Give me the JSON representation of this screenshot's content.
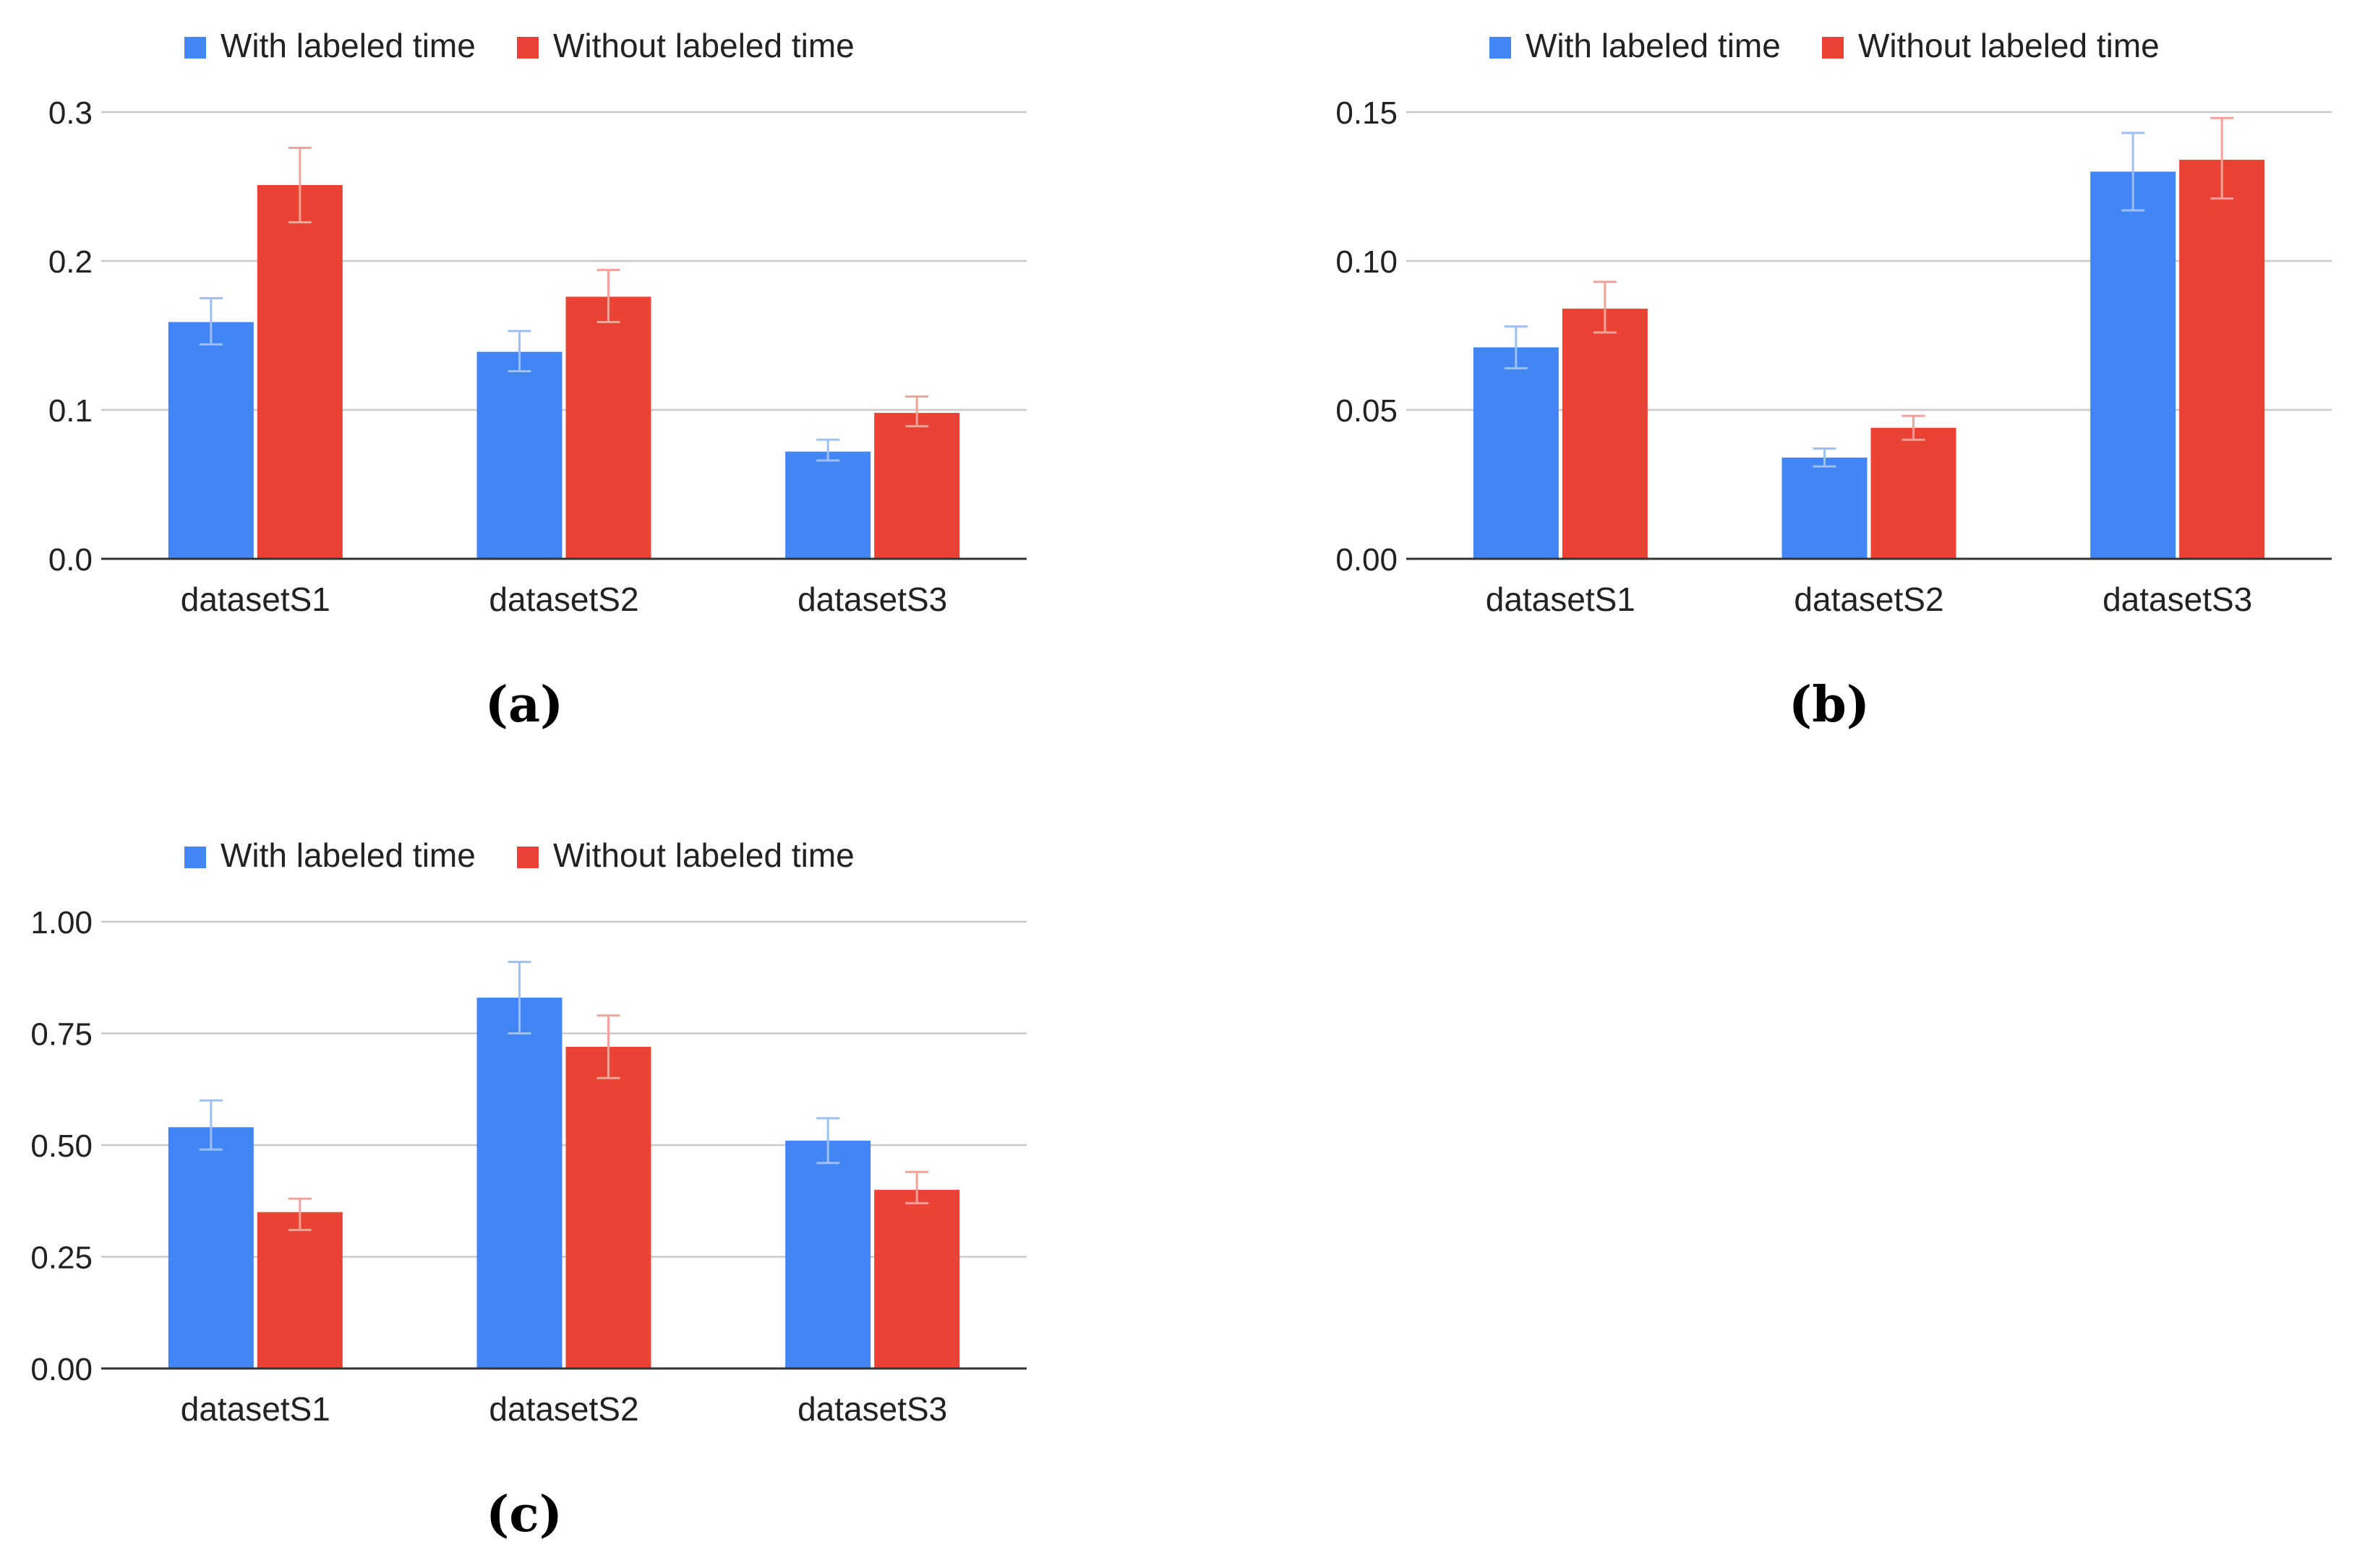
{
  "colors": {
    "with": "#4285F4",
    "without": "#EA4335",
    "with_err": "#9DC0F8",
    "without_err": "#F4A19A",
    "grid": "#C8C8C8",
    "axis": "#333333",
    "text": "#222222"
  },
  "chart_data": [
    {
      "type": "bar",
      "caption": "(a)",
      "categories": [
        "datasetS1",
        "datasetS2",
        "datasetS3"
      ],
      "series": [
        {
          "name": "With labeled time",
          "values": [
            0.159,
            0.139,
            0.072
          ],
          "err_low": [
            0.144,
            0.126,
            0.066
          ],
          "err_high": [
            0.175,
            0.153,
            0.08
          ]
        },
        {
          "name": "Without labeled time",
          "values": [
            0.251,
            0.176,
            0.098
          ],
          "err_low": [
            0.226,
            0.159,
            0.089
          ],
          "err_high": [
            0.276,
            0.194,
            0.109
          ]
        }
      ],
      "ylim": [
        0,
        0.3
      ],
      "yticks": [
        0.0,
        0.1,
        0.2,
        0.3
      ],
      "ytick_labels": [
        "0.0",
        "0.1",
        "0.2",
        "0.3"
      ],
      "legend_position": "top",
      "grid": true
    },
    {
      "type": "bar",
      "caption": "(b)",
      "categories": [
        "datasetS1",
        "datasetS2",
        "datasetS3"
      ],
      "series": [
        {
          "name": "With labeled time",
          "values": [
            0.071,
            0.034,
            0.13
          ],
          "err_low": [
            0.064,
            0.031,
            0.117
          ],
          "err_high": [
            0.078,
            0.037,
            0.143
          ]
        },
        {
          "name": "Without labeled time",
          "values": [
            0.084,
            0.044,
            0.134
          ],
          "err_low": [
            0.076,
            0.04,
            0.121
          ],
          "err_high": [
            0.093,
            0.048,
            0.148
          ]
        }
      ],
      "ylim": [
        0,
        0.15
      ],
      "yticks": [
        0.0,
        0.05,
        0.1,
        0.15
      ],
      "ytick_labels": [
        "0.00",
        "0.05",
        "0.10",
        "0.15"
      ],
      "legend_position": "top",
      "grid": true
    },
    {
      "type": "bar",
      "caption": "(c)",
      "categories": [
        "datasetS1",
        "datasetS2",
        "datasetS3"
      ],
      "series": [
        {
          "name": "With labeled time",
          "values": [
            0.54,
            0.83,
            0.51
          ],
          "err_low": [
            0.49,
            0.75,
            0.46
          ],
          "err_high": [
            0.6,
            0.91,
            0.56
          ]
        },
        {
          "name": "Without labeled time",
          "values": [
            0.35,
            0.72,
            0.4
          ],
          "err_low": [
            0.31,
            0.65,
            0.37
          ],
          "err_high": [
            0.38,
            0.79,
            0.44
          ]
        }
      ],
      "ylim": [
        0,
        1.0
      ],
      "yticks": [
        0.0,
        0.25,
        0.5,
        0.75,
        1.0
      ],
      "ytick_labels": [
        "0.00",
        "0.25",
        "0.50",
        "0.75",
        "1.00"
      ],
      "legend_position": "top",
      "grid": true
    }
  ]
}
